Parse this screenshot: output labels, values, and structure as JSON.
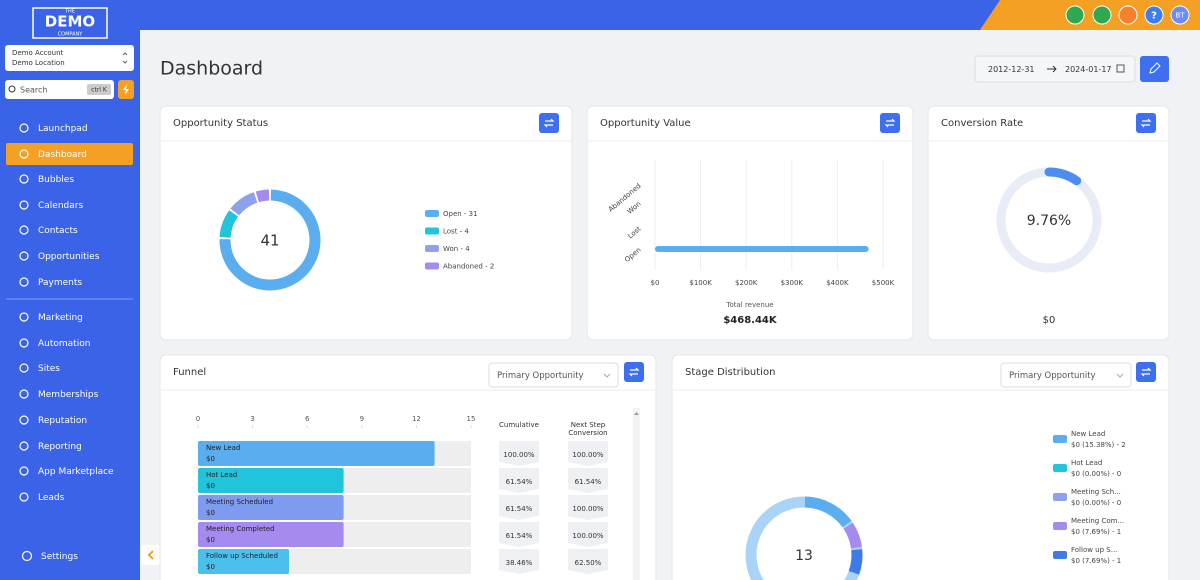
{
  "sidebar": {
    "brand": {
      "top": "THE",
      "name": "DEMO",
      "bottom": "COMPANY"
    },
    "account": {
      "name": "Demo Account",
      "location": "Demo Location"
    },
    "search": {
      "placeholder": "Search",
      "shortcut": "ctrl K"
    },
    "nav": [
      "Launchpad",
      "Dashboard",
      "Bubbles",
      "Calendars",
      "Contacts",
      "Opportunities",
      "Payments"
    ],
    "nav_more": [
      "Marketing",
      "Automation",
      "Sites",
      "Memberships",
      "Reputation",
      "Reporting",
      "App Marketplace",
      "Leads"
    ],
    "settings": "Settings",
    "active": "Dashboard"
  },
  "topbar": {
    "help": "?",
    "avatar": "BT"
  },
  "header": {
    "title": "Dashboard",
    "date_start": "2012-12-31",
    "date_end": "2024-01-17"
  },
  "opportunity_status": {
    "title": "Opportunity Status",
    "type": "donut",
    "total": 41,
    "legend": [
      "Open - 31",
      "Lost - 4",
      "Won - 4",
      "Abandoned - 2"
    ],
    "values": [
      31,
      4,
      4,
      2
    ],
    "colors": [
      "#5aaef0",
      "#22c4dc",
      "#8fa0ee",
      "#a58bf0"
    ]
  },
  "opportunity_value": {
    "title": "Opportunity Value",
    "type": "bar",
    "orientation": "horizontal",
    "categories": [
      "Open",
      "Lost",
      "Won",
      "Abandoned"
    ],
    "values": [
      468440,
      0,
      0,
      0
    ],
    "color": "#5aaef0",
    "xlim": [
      0,
      500000
    ],
    "xticks": [
      {
        "value": 0,
        "label": "$0"
      },
      {
        "value": 100000,
        "label": "$100K"
      },
      {
        "value": 200000,
        "label": "$200K"
      },
      {
        "value": 300000,
        "label": "$300K"
      },
      {
        "value": 400000,
        "label": "$400K"
      },
      {
        "value": 500000,
        "label": "$500K"
      }
    ],
    "grid": true,
    "xlabel": "Total revenue",
    "total": "$468.44K"
  },
  "conversion_rate": {
    "title": "Conversion Rate",
    "type": "gauge",
    "value": 9.76,
    "value_label": "9.76%",
    "ylim": [
      0,
      100
    ],
    "revenue": "$0",
    "color": "#4a8ff0"
  },
  "funnel": {
    "title": "Funnel",
    "type": "bar",
    "orientation": "horizontal",
    "filter": "Primary Opportunity",
    "xlim": [
      0,
      15
    ],
    "xticks": [
      0,
      3,
      6,
      9,
      12,
      15
    ],
    "cumulative_header": "Cumulative",
    "next_step_header": [
      "Next Step",
      "Conversion"
    ],
    "stages": [
      "New Lead",
      "Hot Lead",
      "Meeting Scheduled",
      "Meeting Completed",
      "Follow up Scheduled"
    ],
    "amounts": [
      "$0",
      "$0",
      "$0",
      "$0",
      "$0"
    ],
    "values": [
      13,
      8,
      8,
      8,
      5
    ],
    "colors": [
      "#5aaef0",
      "#22c4dc",
      "#7f9bf0",
      "#a58bf0",
      "#4cc0ec"
    ],
    "cumulative": [
      "100.00%",
      "61.54%",
      "61.54%",
      "61.54%",
      "38.46%"
    ],
    "next_step": [
      "100.00%",
      "61.54%",
      "100.00%",
      "100.00%",
      "62.50%"
    ]
  },
  "stage_distribution": {
    "title": "Stage Distribution",
    "type": "donut",
    "filter": "Primary Opportunity",
    "total": 13,
    "names": [
      "New Lead",
      "Hot Lead",
      "Meeting Sch...",
      "Meeting Com...",
      "Follow up S..."
    ],
    "details": [
      "$0 (15.38%) - 2",
      "$0 (0.00%) - 0",
      "$0 (0.00%) - 0",
      "$0 (7.69%) - 1",
      "$0 (7.69%) - 1"
    ],
    "values": [
      2,
      0,
      0,
      1,
      1
    ],
    "colors": [
      "#5aaef0",
      "#22c4dc",
      "#8fa0ee",
      "#a58bf0",
      "#3f7be8"
    ]
  }
}
